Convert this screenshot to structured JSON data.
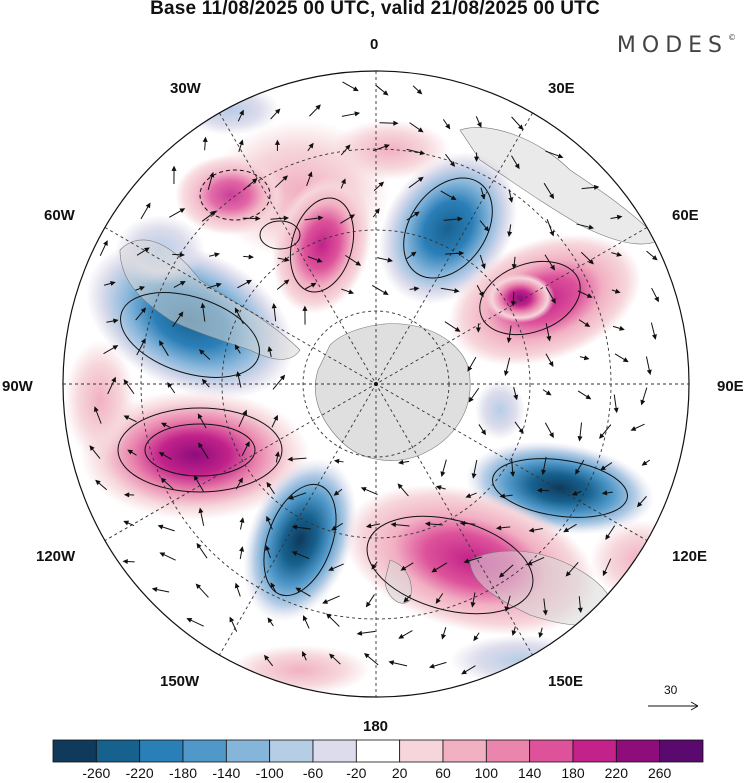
{
  "title": "Base 11/08/2025 00 UTC, valid 21/08/2025 00 UTC",
  "brand": "MODES",
  "brand_mark": "©",
  "longitude_labels": {
    "lon_0": "0",
    "lon_30e": "30E",
    "lon_60e": "60E",
    "lon_90e": "90E",
    "lon_120e": "120E",
    "lon_150e": "150E",
    "lon_180": "180",
    "lon_150w": "150W",
    "lon_120w": "120W",
    "lon_90w": "90W",
    "lon_60w": "60W",
    "lon_30w": "30W"
  },
  "vector_scale": {
    "label": "30"
  },
  "colorbar": {
    "ticks": [
      "-260",
      "-220",
      "-180",
      "-140",
      "-100",
      "-60",
      "-20",
      "20",
      "60",
      "100",
      "140",
      "180",
      "220",
      "260"
    ],
    "colors": [
      "#0f3a5c",
      "#17618f",
      "#2b7fb8",
      "#4f98c9",
      "#86b5da",
      "#b6cde6",
      "#dcdcec",
      "#ffffff",
      "#f6d6db",
      "#f2b0c3",
      "#ea85ad",
      "#dd529a",
      "#c2228a",
      "#8e0c7c",
      "#5a0a6e"
    ]
  },
  "colors": {
    "land": "#d9d9d9",
    "frame": "#111111",
    "grid": "#333333"
  }
}
